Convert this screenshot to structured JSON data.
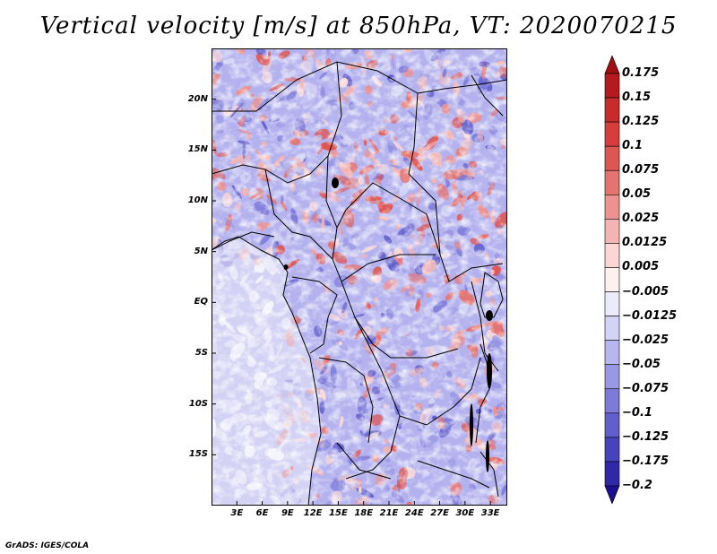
{
  "title": "Vertical velocity [m/s] at 850hPa, VT: 2020070215",
  "footer": "GrADS: IGES/COLA",
  "map": {
    "lon_range": [
      0,
      35
    ],
    "lat_range": [
      -20,
      25
    ],
    "variable": "vertical velocity at 850hPa",
    "units": "m/s",
    "lat_labels": [
      "20N",
      "15N",
      "10N",
      "5N",
      "EQ",
      "5S",
      "10S",
      "15S"
    ],
    "lat_values": [
      20,
      15,
      10,
      5,
      0,
      -5,
      -10,
      -15
    ],
    "lon_labels": [
      "3E",
      "6E",
      "9E",
      "12E",
      "15E",
      "18E",
      "21E",
      "24E",
      "27E",
      "30E",
      "33E"
    ],
    "lon_values": [
      3,
      6,
      9,
      12,
      15,
      18,
      21,
      24,
      27,
      30,
      33
    ]
  },
  "colorbar": {
    "labels": [
      "0.175",
      "0.15",
      "0.125",
      "0.1",
      "0.075",
      "0.05",
      "0.025",
      "0.0125",
      "0.005",
      "−0.005",
      "−0.0125",
      "−0.025",
      "−0.05",
      "−0.075",
      "−0.1",
      "−0.125",
      "−0.175",
      "−0.2"
    ],
    "colors": [
      "#a00f13",
      "#b51a1e",
      "#c92b2b",
      "#d63d3b",
      "#de5652",
      "#e57370",
      "#ec9290",
      "#f4b4b2",
      "#fad6d4",
      "#fdf1f0",
      "#ecebfa",
      "#d4d3f5",
      "#b8b6ee",
      "#9a98e4",
      "#7d7ad9",
      "#615ecd",
      "#4742bd",
      "#3128a9",
      "#1c0f90"
    ]
  }
}
